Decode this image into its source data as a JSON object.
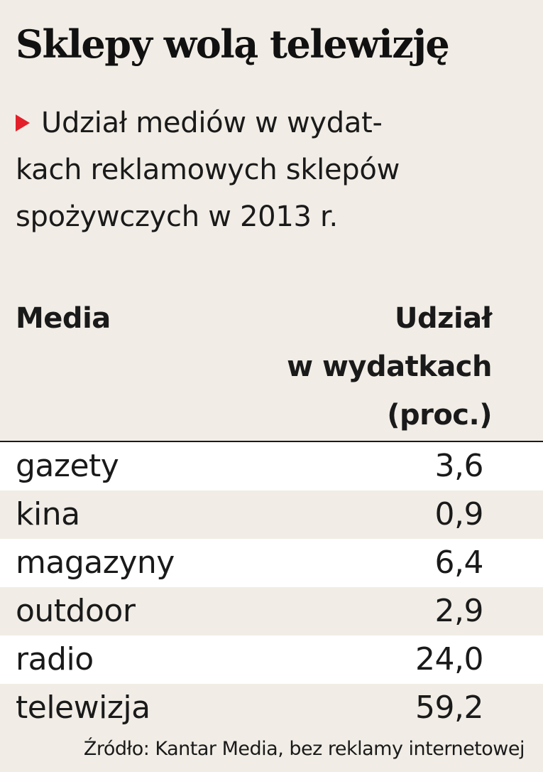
{
  "chart_data": {
    "type": "table",
    "title": "Sklepy wolą telewizję",
    "subtitle": "Udział mediów w wydatkach reklamowych sklepów spożywczych w 2013 r.",
    "columns": [
      "Media",
      "Udział w wydatkach (proc.)"
    ],
    "rows": [
      {
        "label": "gazety",
        "value": "3,6"
      },
      {
        "label": "kina",
        "value": "0,9"
      },
      {
        "label": "magazyny",
        "value": "6,4"
      },
      {
        "label": "outdoor",
        "value": "2,9"
      },
      {
        "label": "radio",
        "value": "24,0"
      },
      {
        "label": "telewizja",
        "value": "59,2"
      }
    ],
    "source": "Źródło: Kantar Media, bez reklamy internetowej"
  },
  "display": {
    "subtitle_lines": [
      "Udział mediów w wydat-",
      "kach reklamowych sklepów",
      "spożywczych w 2013 r."
    ],
    "share_header_lines": [
      "Udział",
      "w wydatkach",
      "(proc.)"
    ]
  },
  "colors": {
    "accent_marker": "#e3202a",
    "background": "#f1ede6",
    "row_highlight": "#ffffff"
  }
}
